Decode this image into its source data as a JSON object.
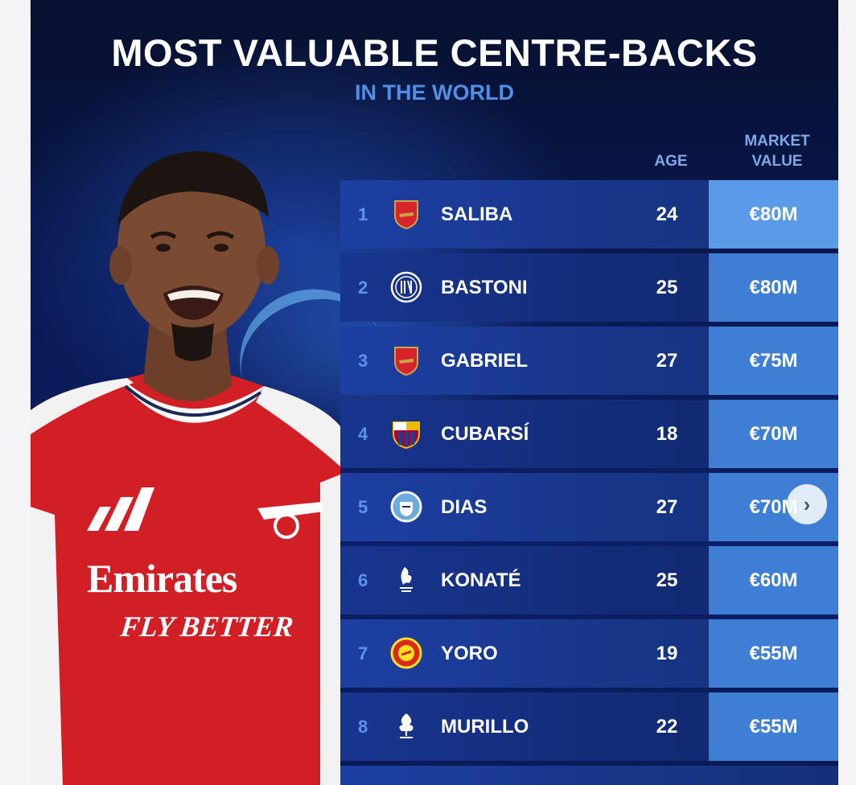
{
  "header": {
    "title": "MOST VALUABLE CENTRE-BACKS",
    "subtitle": "IN THE WORLD"
  },
  "columns": {
    "age": "AGE",
    "market_value_line1": "MARKET",
    "market_value_line2": "VALUE"
  },
  "shirt": {
    "sponsor": "Emirates",
    "slogan": "FLY BETTER"
  },
  "rows": [
    {
      "rank": "1",
      "name": "SALIBA",
      "age": "24",
      "value": "€80M",
      "club_icon": "arsenal-crest"
    },
    {
      "rank": "2",
      "name": "BASTONI",
      "age": "25",
      "value": "€80M",
      "club_icon": "inter-crest"
    },
    {
      "rank": "3",
      "name": "GABRIEL",
      "age": "27",
      "value": "€75M",
      "club_icon": "arsenal-crest"
    },
    {
      "rank": "4",
      "name": "CUBARSÍ",
      "age": "18",
      "value": "€70M",
      "club_icon": "barcelona-crest"
    },
    {
      "rank": "5",
      "name": "DIAS",
      "age": "27",
      "value": "€70M",
      "club_icon": "man-city-crest"
    },
    {
      "rank": "6",
      "name": "KONATÉ",
      "age": "25",
      "value": "€60M",
      "club_icon": "liverpool-crest"
    },
    {
      "rank": "7",
      "name": "YORO",
      "age": "19",
      "value": "€55M",
      "club_icon": "man-united-crest"
    },
    {
      "rank": "8",
      "name": "MURILLO",
      "age": "22",
      "value": "€55M",
      "club_icon": "nottingham-forest-crest"
    }
  ],
  "navigation": {
    "next_icon": "chevron-right-icon"
  },
  "colors": {
    "background": "#0a1a55",
    "row": "#1d3fa3",
    "value_cell": "#3e7ed4",
    "accent": "#4f8fe6"
  }
}
